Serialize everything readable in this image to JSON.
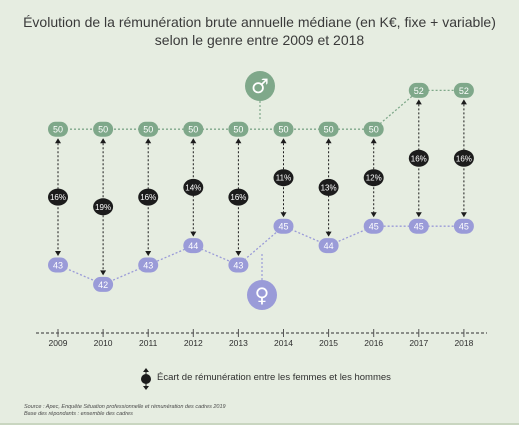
{
  "chart_data": {
    "type": "line",
    "title": "Évolution de la rémunération brute annuelle médiane (en K€, fixe + variable)",
    "subtitle": "selon le genre entre 2009 et 2018",
    "x": [
      "2009",
      "2010",
      "2011",
      "2012",
      "2013",
      "2014",
      "2015",
      "2016",
      "2017",
      "2018"
    ],
    "series": [
      {
        "name": "hommes",
        "symbol": "♂",
        "color": "#7fa88a",
        "values": [
          50,
          50,
          50,
          50,
          50,
          50,
          50,
          50,
          52,
          52
        ]
      },
      {
        "name": "femmes",
        "symbol": "♀",
        "color": "#9a9bd8",
        "values": [
          43,
          42,
          43,
          44,
          43,
          45,
          44,
          45,
          45,
          45
        ]
      }
    ],
    "gaps": [
      "16%",
      "19%",
      "16%",
      "14%",
      "16%",
      "11%",
      "13%",
      "12%",
      "16%",
      "16%"
    ],
    "gap_color": "#1c1c1c",
    "legend": "Écart de rémunération entre les femmes et les hommes",
    "source": "Source : Apec, Enquête Situation professionnelle et rémunération des cadres 2019",
    "base": "Base des répondants : ensemble des cadres"
  }
}
